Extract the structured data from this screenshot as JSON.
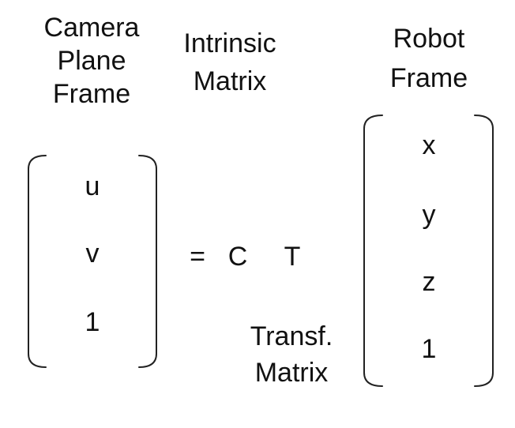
{
  "labels": {
    "camera_plane_frame": [
      "Camera",
      "Plane",
      "Frame"
    ],
    "intrinsic_matrix": [
      "Intrinsic",
      "Matrix"
    ],
    "robot_frame": [
      "Robot",
      "Frame"
    ],
    "transf_matrix": [
      "Transf.",
      "Matrix"
    ]
  },
  "left_vector": [
    "u",
    "v",
    "1"
  ],
  "right_vector": [
    "x",
    "y",
    "z",
    "1"
  ],
  "equation": {
    "equals": "=",
    "intrinsic_symbol": "C",
    "transform_symbol": "T"
  }
}
